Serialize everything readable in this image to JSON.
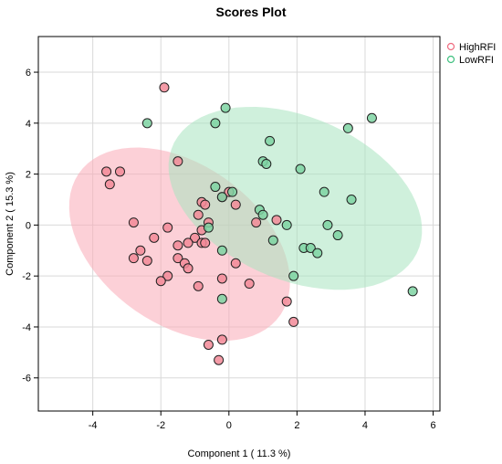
{
  "chart_data": {
    "type": "scatter",
    "title": "Scores Plot",
    "xlabel": "Component 1 ( 11.3 %)",
    "ylabel": "Component 2 ( 15.3 %)",
    "xlim": [
      -5.6,
      6.2
    ],
    "ylim": [
      -7.3,
      7.4
    ],
    "xticks": [
      -4,
      -2,
      0,
      2,
      4,
      6
    ],
    "yticks": [
      -6,
      -4,
      -2,
      0,
      2,
      4,
      6
    ],
    "grid": true,
    "legend_position": "top-right",
    "series": [
      {
        "name": "HighRFI",
        "color": "#ef6b7f",
        "fill": "#f28a98",
        "ellipse_fill": "#f9a9b7",
        "ellipse": {
          "cx": -1.45,
          "cy": -0.75,
          "rx": 4.2,
          "ry": 2.7,
          "angle_deg": -56
        },
        "points": [
          [
            -1.9,
            5.4
          ],
          [
            -3.6,
            2.1
          ],
          [
            -3.2,
            2.1
          ],
          [
            -3.5,
            1.6
          ],
          [
            -1.5,
            2.5
          ],
          [
            -0.8,
            0.9
          ],
          [
            -0.7,
            0.8
          ],
          [
            -0.2,
            1.1
          ],
          [
            0.0,
            1.3
          ],
          [
            0.2,
            0.8
          ],
          [
            -0.9,
            0.4
          ],
          [
            -0.6,
            0.1
          ],
          [
            -0.8,
            -0.2
          ],
          [
            -2.8,
            0.1
          ],
          [
            -1.8,
            -0.1
          ],
          [
            -2.2,
            -0.5
          ],
          [
            -1.0,
            -0.5
          ],
          [
            -0.8,
            -0.7
          ],
          [
            -1.5,
            -0.8
          ],
          [
            -0.7,
            -0.7
          ],
          [
            -1.2,
            -0.7
          ],
          [
            -2.6,
            -1.0
          ],
          [
            -2.8,
            -1.3
          ],
          [
            -2.4,
            -1.4
          ],
          [
            -1.5,
            -1.3
          ],
          [
            -1.3,
            -1.5
          ],
          [
            -1.2,
            -1.7
          ],
          [
            -1.8,
            -2.0
          ],
          [
            -2.0,
            -2.2
          ],
          [
            -0.9,
            -2.4
          ],
          [
            -0.2,
            -2.1
          ],
          [
            0.2,
            -1.5
          ],
          [
            0.6,
            -2.3
          ],
          [
            0.8,
            0.1
          ],
          [
            1.4,
            0.2
          ],
          [
            1.7,
            -3.0
          ],
          [
            1.9,
            -3.8
          ],
          [
            -0.2,
            -4.5
          ],
          [
            -0.6,
            -4.7
          ],
          [
            -0.3,
            -5.3
          ]
        ]
      },
      {
        "name": "LowRFI",
        "color": "#3fc07f",
        "fill": "#7ed4a2",
        "ellipse_fill": "#a8e3c0",
        "ellipse": {
          "cx": 1.95,
          "cy": 1.05,
          "rx": 4.25,
          "ry": 2.95,
          "angle_deg": -42
        },
        "points": [
          [
            -2.4,
            4.0
          ],
          [
            -0.1,
            4.6
          ],
          [
            -0.4,
            4.0
          ],
          [
            1.2,
            3.3
          ],
          [
            1.0,
            2.5
          ],
          [
            1.1,
            2.4
          ],
          [
            2.1,
            2.2
          ],
          [
            3.5,
            3.8
          ],
          [
            4.2,
            4.2
          ],
          [
            -0.4,
            1.5
          ],
          [
            -0.2,
            1.1
          ],
          [
            0.1,
            1.3
          ],
          [
            0.9,
            0.6
          ],
          [
            1.0,
            0.4
          ],
          [
            1.7,
            0.0
          ],
          [
            2.8,
            1.3
          ],
          [
            3.6,
            1.0
          ],
          [
            2.9,
            0.0
          ],
          [
            3.2,
            -0.4
          ],
          [
            2.2,
            -0.9
          ],
          [
            2.4,
            -0.9
          ],
          [
            2.6,
            -1.1
          ],
          [
            1.3,
            -0.6
          ],
          [
            -0.6,
            -0.1
          ],
          [
            -0.2,
            -1.0
          ],
          [
            1.9,
            -2.0
          ],
          [
            -0.2,
            -2.9
          ],
          [
            5.4,
            -2.6
          ]
        ]
      }
    ]
  }
}
